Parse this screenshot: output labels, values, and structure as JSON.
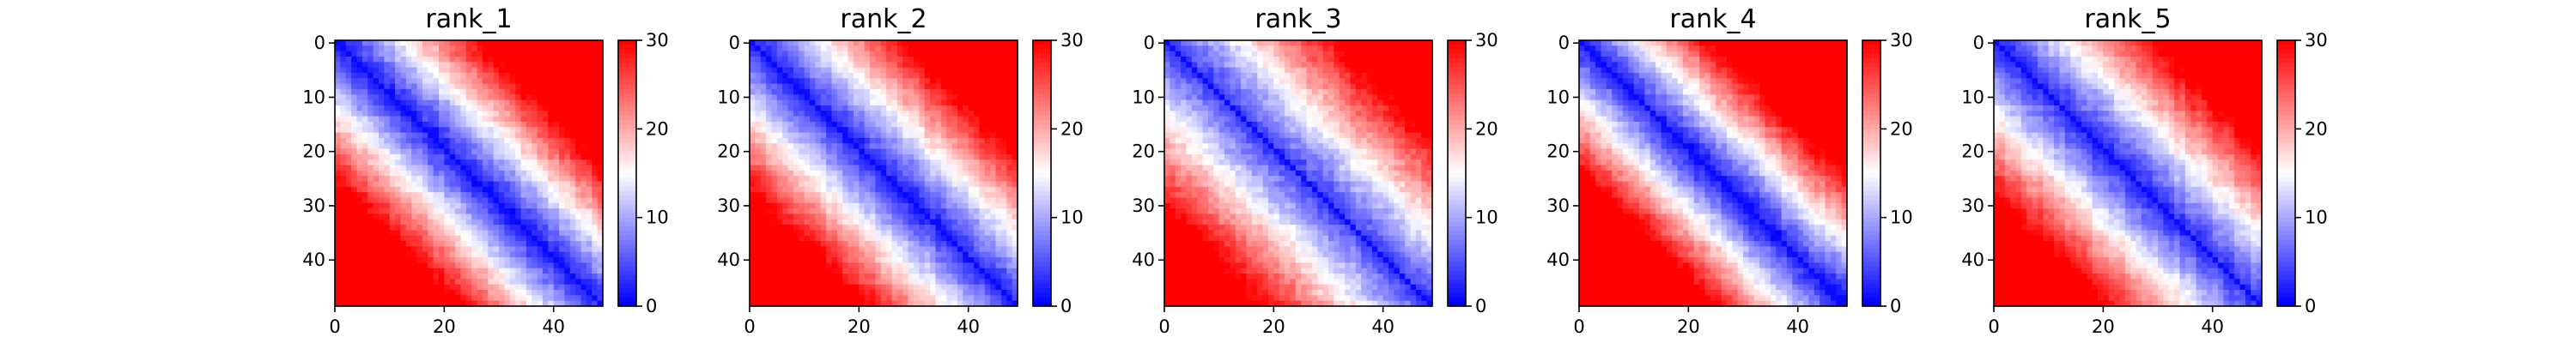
{
  "chart_data": [
    {
      "type": "heatmap",
      "title": "rank_1",
      "grid_size": 49,
      "x_ticks": [
        "0",
        "20",
        "40"
      ],
      "y_ticks": [
        "0",
        "10",
        "20",
        "30",
        "40"
      ],
      "colorbar": {
        "colormap": "bwr",
        "vmin": 0,
        "vmax": 30,
        "ticks": [
          "0",
          "10",
          "20",
          "30"
        ]
      },
      "pattern": "distance-map: ~1 on diagonal, rising to ~30 at far corners; blue block rows 0-35 near diagonal, red lower-left and upper-right"
    },
    {
      "type": "heatmap",
      "title": "rank_2",
      "grid_size": 49,
      "x_ticks": [
        "0",
        "20",
        "40"
      ],
      "y_ticks": [
        "0",
        "10",
        "20",
        "30",
        "40"
      ],
      "colorbar": {
        "colormap": "bwr",
        "vmin": 0,
        "vmax": 30,
        "ticks": [
          "0",
          "10",
          "20",
          "30"
        ]
      },
      "pattern": "distance-map: ~1 on diagonal, rising to ~30 at far corners"
    },
    {
      "type": "heatmap",
      "title": "rank_3",
      "grid_size": 49,
      "x_ticks": [
        "0",
        "20",
        "40"
      ],
      "y_ticks": [
        "0",
        "10",
        "20",
        "30",
        "40"
      ],
      "colorbar": {
        "colormap": "bwr",
        "vmin": 0,
        "vmax": 30,
        "ticks": [
          "0",
          "10",
          "20",
          "30"
        ]
      },
      "pattern": "distance-map with broad blue region; red mainly at top-right and bottom rows"
    },
    {
      "type": "heatmap",
      "title": "rank_4",
      "grid_size": 49,
      "x_ticks": [
        "0",
        "20",
        "40"
      ],
      "y_ticks": [
        "0",
        "10",
        "20",
        "30",
        "40"
      ],
      "colorbar": {
        "colormap": "bwr",
        "vmin": 0,
        "vmax": 30,
        "ticks": [
          "0",
          "10",
          "20",
          "30"
        ]
      },
      "pattern": "distance-map: narrow blue band along diagonal, red off-diagonal"
    },
    {
      "type": "heatmap",
      "title": "rank_5",
      "grid_size": 49,
      "x_ticks": [
        "0",
        "20",
        "40"
      ],
      "y_ticks": [
        "0",
        "10",
        "20",
        "30",
        "40"
      ],
      "colorbar": {
        "colormap": "bwr",
        "vmin": 0,
        "vmax": 30,
        "ticks": [
          "0",
          "10",
          "20",
          "30"
        ]
      },
      "pattern": "distance-map: wide blue band, red top-right and bottom-left"
    }
  ]
}
